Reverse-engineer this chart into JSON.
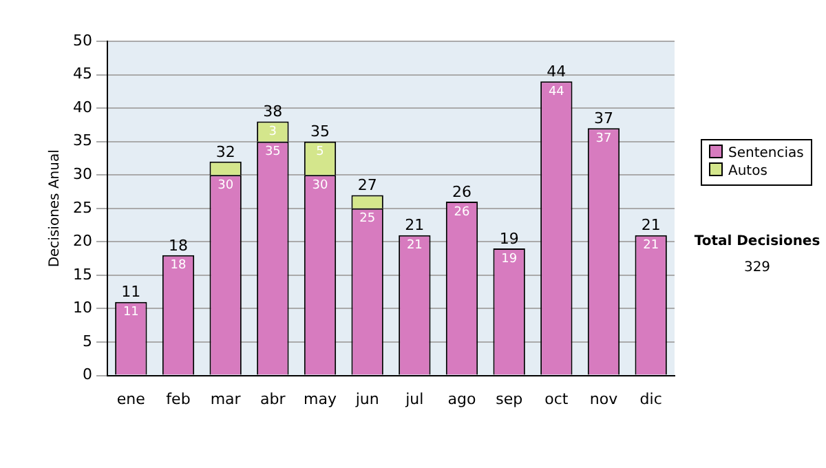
{
  "chart_data": {
    "type": "bar",
    "stacked": true,
    "ylabel": "Decisiones Anual",
    "categories": [
      "ene",
      "feb",
      "mar",
      "abr",
      "may",
      "jun",
      "jul",
      "ago",
      "sep",
      "oct",
      "nov",
      "dic"
    ],
    "series": [
      {
        "name": "Sentencias",
        "color": "#d77bbf",
        "values": [
          11,
          18,
          30,
          35,
          30,
          25,
          21,
          26,
          19,
          44,
          37,
          21
        ],
        "value_labels": [
          "11",
          "18",
          "30",
          "35",
          "30",
          "25",
          "21",
          "26",
          "19",
          "44",
          "37",
          "21"
        ]
      },
      {
        "name": "Autos",
        "color": "#d4e68c",
        "values": [
          0,
          0,
          2,
          3,
          5,
          2,
          0,
          0,
          0,
          0,
          0,
          0
        ],
        "value_labels": [
          null,
          null,
          null,
          "3",
          "5",
          null,
          null,
          null,
          null,
          null,
          null,
          null
        ]
      }
    ],
    "totals": [
      "11",
      "18",
      "32",
      "38",
      "35",
      "27",
      "21",
      "26",
      "19",
      "44",
      "37",
      "21"
    ],
    "ylim": [
      0,
      50
    ],
    "yticks": [
      0,
      5,
      10,
      15,
      20,
      25,
      30,
      35,
      40,
      45,
      50
    ],
    "grid": "y",
    "legend": "right",
    "annotations": [
      "Total Decisiones",
      "329"
    ]
  }
}
